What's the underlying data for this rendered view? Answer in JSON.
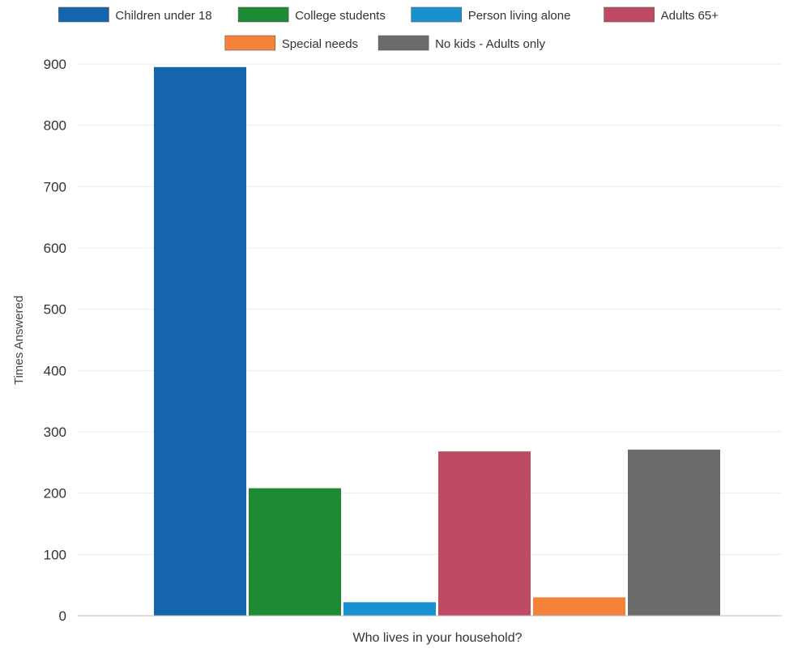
{
  "chart_data": {
    "type": "bar",
    "title": "",
    "xlabel": "Who lives in your household?",
    "ylabel": "Times Answered",
    "ylim": [
      0,
      900
    ],
    "yticks": [
      0,
      100,
      200,
      300,
      400,
      500,
      600,
      700,
      800,
      900
    ],
    "grid": true,
    "legend_position": "top",
    "series": [
      {
        "name": "Children under 18",
        "value": 895,
        "color": "#1565ac"
      },
      {
        "name": "College students",
        "value": 208,
        "color": "#1e8a34"
      },
      {
        "name": "Person living alone",
        "value": 22,
        "color": "#1a91cf"
      },
      {
        "name": "Adults 65+",
        "value": 268,
        "color": "#be4a63"
      },
      {
        "name": "Special needs",
        "value": 30,
        "color": "#f5823a"
      },
      {
        "name": "No kids - Adults only",
        "value": 271,
        "color": "#6a6c6b"
      }
    ]
  }
}
